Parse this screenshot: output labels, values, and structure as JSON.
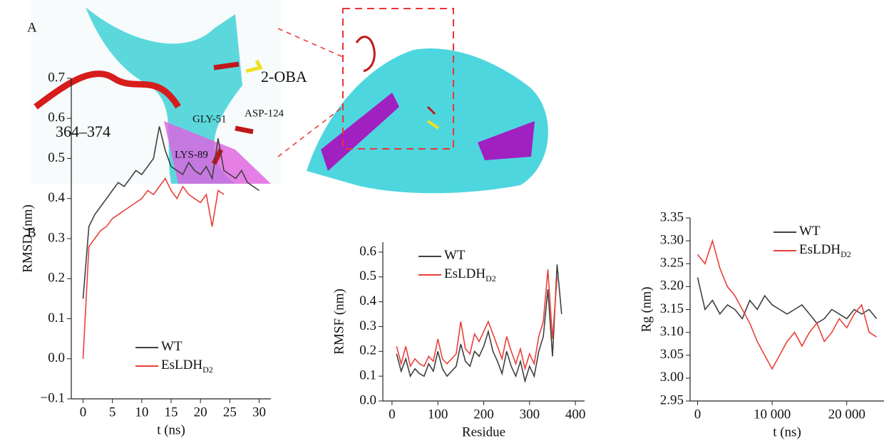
{
  "panels": {
    "a": {
      "label": "A",
      "annotations": [
        "364–374",
        "2-OBA",
        "GLY-51",
        "ASP-124",
        "LYS-89"
      ]
    },
    "b": {
      "label": "B"
    }
  },
  "chart_data": [
    {
      "type": "line",
      "ylabel": "RMSD (nm)",
      "xlabel": "t (ns)",
      "legend": "lower center",
      "x": [
        0,
        1,
        2,
        3,
        4,
        5,
        6,
        7,
        8,
        9,
        10,
        11,
        12,
        13,
        14,
        15,
        16,
        17,
        18,
        19,
        20,
        21,
        22,
        23,
        24,
        25,
        26,
        27,
        28,
        29,
        30
      ],
      "series": [
        {
          "name": "WT",
          "color": "#404040",
          "values": [
            0.15,
            0.33,
            0.36,
            0.38,
            0.4,
            0.42,
            0.44,
            0.43,
            0.45,
            0.47,
            0.46,
            0.48,
            0.5,
            0.58,
            0.52,
            0.48,
            0.47,
            0.46,
            0.49,
            0.47,
            0.46,
            0.48,
            0.45,
            0.55,
            0.47,
            0.46,
            0.45,
            0.47,
            0.44,
            0.43,
            0.42
          ]
        },
        {
          "name": "EsLDH",
          "name_subscript": "D2",
          "color": "#e8403a",
          "values": [
            0.0,
            0.28,
            0.3,
            0.32,
            0.33,
            0.35,
            0.36,
            0.37,
            0.38,
            0.39,
            0.4,
            0.42,
            0.41,
            0.43,
            0.45,
            0.42,
            0.4,
            0.43,
            0.41,
            0.4,
            0.39,
            0.41,
            0.33,
            0.42,
            0.41,
            null,
            null,
            null,
            null,
            null,
            null
          ]
        }
      ],
      "xlim": [
        -2,
        32
      ],
      "xticks": [
        0,
        5,
        10,
        15,
        20,
        25,
        30
      ],
      "ylim": [
        -0.1,
        0.7
      ],
      "yticks": [
        {
          "value": -0.1,
          "label": "−0.1"
        },
        {
          "value": 0,
          "label": "0.0"
        },
        0.1,
        0.2,
        0.3,
        0.4,
        0.5,
        0.6,
        0.7
      ]
    },
    {
      "type": "line",
      "ylabel": "RMSF (nm)",
      "xlabel": "Residue",
      "legend": "upper left",
      "x": [
        10,
        20,
        30,
        40,
        50,
        60,
        70,
        80,
        90,
        100,
        110,
        120,
        130,
        140,
        150,
        160,
        170,
        180,
        190,
        200,
        210,
        220,
        230,
        240,
        250,
        260,
        270,
        280,
        290,
        300,
        310,
        320,
        330,
        340,
        350,
        360,
        370
      ],
      "series": [
        {
          "name": "WT",
          "color": "#404040",
          "values": [
            0.19,
            0.12,
            0.17,
            0.1,
            0.13,
            0.11,
            0.1,
            0.15,
            0.12,
            0.2,
            0.13,
            0.1,
            0.12,
            0.14,
            0.23,
            0.16,
            0.14,
            0.2,
            0.18,
            0.22,
            0.28,
            0.2,
            0.16,
            0.11,
            0.2,
            0.14,
            0.1,
            0.16,
            0.08,
            0.14,
            0.1,
            0.2,
            0.26,
            0.45,
            0.18,
            0.55,
            0.35
          ]
        },
        {
          "name": "EsLDH",
          "name_subscript": "D2",
          "color": "#e8403a",
          "values": [
            0.22,
            0.15,
            0.22,
            0.14,
            0.17,
            0.15,
            0.14,
            0.18,
            0.16,
            0.25,
            0.17,
            0.15,
            0.17,
            0.19,
            0.32,
            0.21,
            0.19,
            0.27,
            0.24,
            0.28,
            0.32,
            0.27,
            0.22,
            0.17,
            0.26,
            0.2,
            0.15,
            0.21,
            0.13,
            0.19,
            0.15,
            0.26,
            0.32,
            0.53,
            0.25,
            0.5,
            null
          ]
        }
      ],
      "xlim": [
        -20,
        420
      ],
      "xticks": [
        0,
        100,
        200,
        300,
        400
      ],
      "ylim": [
        0,
        0.64
      ],
      "yticks": [
        {
          "value": 0,
          "label": "0.0"
        },
        0.1,
        0.2,
        0.3,
        0.4,
        0.5,
        0.6
      ]
    },
    {
      "type": "line",
      "ylabel": "Rg (nm)",
      "xlabel": "t (ns)",
      "legend": "upper right",
      "x": [
        0,
        1000,
        2000,
        3000,
        4000,
        5000,
        6000,
        7000,
        8000,
        9000,
        10000,
        11000,
        12000,
        13000,
        14000,
        15000,
        16000,
        17000,
        18000,
        19000,
        20000,
        21000,
        22000,
        23000,
        24000
      ],
      "series": [
        {
          "name": "WT",
          "color": "#404040",
          "values": [
            3.22,
            3.15,
            3.17,
            3.14,
            3.16,
            3.15,
            3.13,
            3.17,
            3.15,
            3.18,
            3.16,
            3.15,
            3.14,
            3.15,
            3.16,
            3.14,
            3.12,
            3.13,
            3.15,
            3.14,
            3.13,
            3.15,
            3.14,
            3.15,
            3.13
          ]
        },
        {
          "name": "EsLDH",
          "name_subscript": "D2",
          "color": "#e8403a",
          "values": [
            3.27,
            3.25,
            3.3,
            3.24,
            3.2,
            3.18,
            3.15,
            3.12,
            3.08,
            3.05,
            3.02,
            3.05,
            3.08,
            3.1,
            3.07,
            3.1,
            3.12,
            3.08,
            3.1,
            3.13,
            3.11,
            3.14,
            3.16,
            3.1,
            3.09
          ]
        }
      ],
      "xlim": [
        -1000,
        25000
      ],
      "xticks": [
        0,
        {
          "value": 10000,
          "label": "10 000"
        },
        {
          "value": 20000,
          "label": "20 000"
        }
      ],
      "ylim": [
        2.95,
        3.35
      ],
      "yticks": [
        2.95,
        {
          "value": 3.0,
          "label": "3.00"
        },
        3.05,
        {
          "value": 3.1,
          "label": "3.10"
        },
        3.15,
        {
          "value": 3.2,
          "label": "3.20"
        },
        3.25,
        {
          "value": 3.3,
          "label": "3.30"
        },
        3.35
      ]
    }
  ]
}
